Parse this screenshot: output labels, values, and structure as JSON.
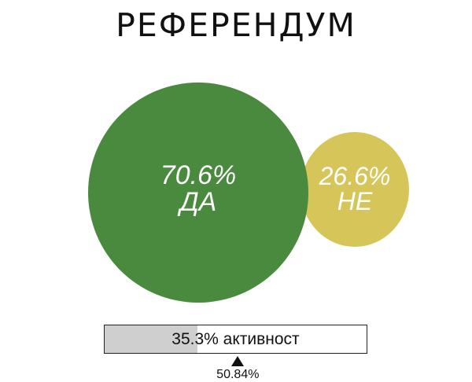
{
  "title": "РЕФЕРЕНДУМ",
  "chart_data": {
    "type": "bubble",
    "series": [
      {
        "name": "ДА",
        "value": 70.6,
        "label": "70.6%",
        "color": "#4a8a3e"
      },
      {
        "name": "НЕ",
        "value": 26.6,
        "label": "26.6%",
        "color": "#d6c65a"
      }
    ],
    "turnout": {
      "value": 35.3,
      "label": "35.3% активност"
    },
    "threshold": {
      "value": 50.84,
      "label": "50.84%"
    }
  }
}
